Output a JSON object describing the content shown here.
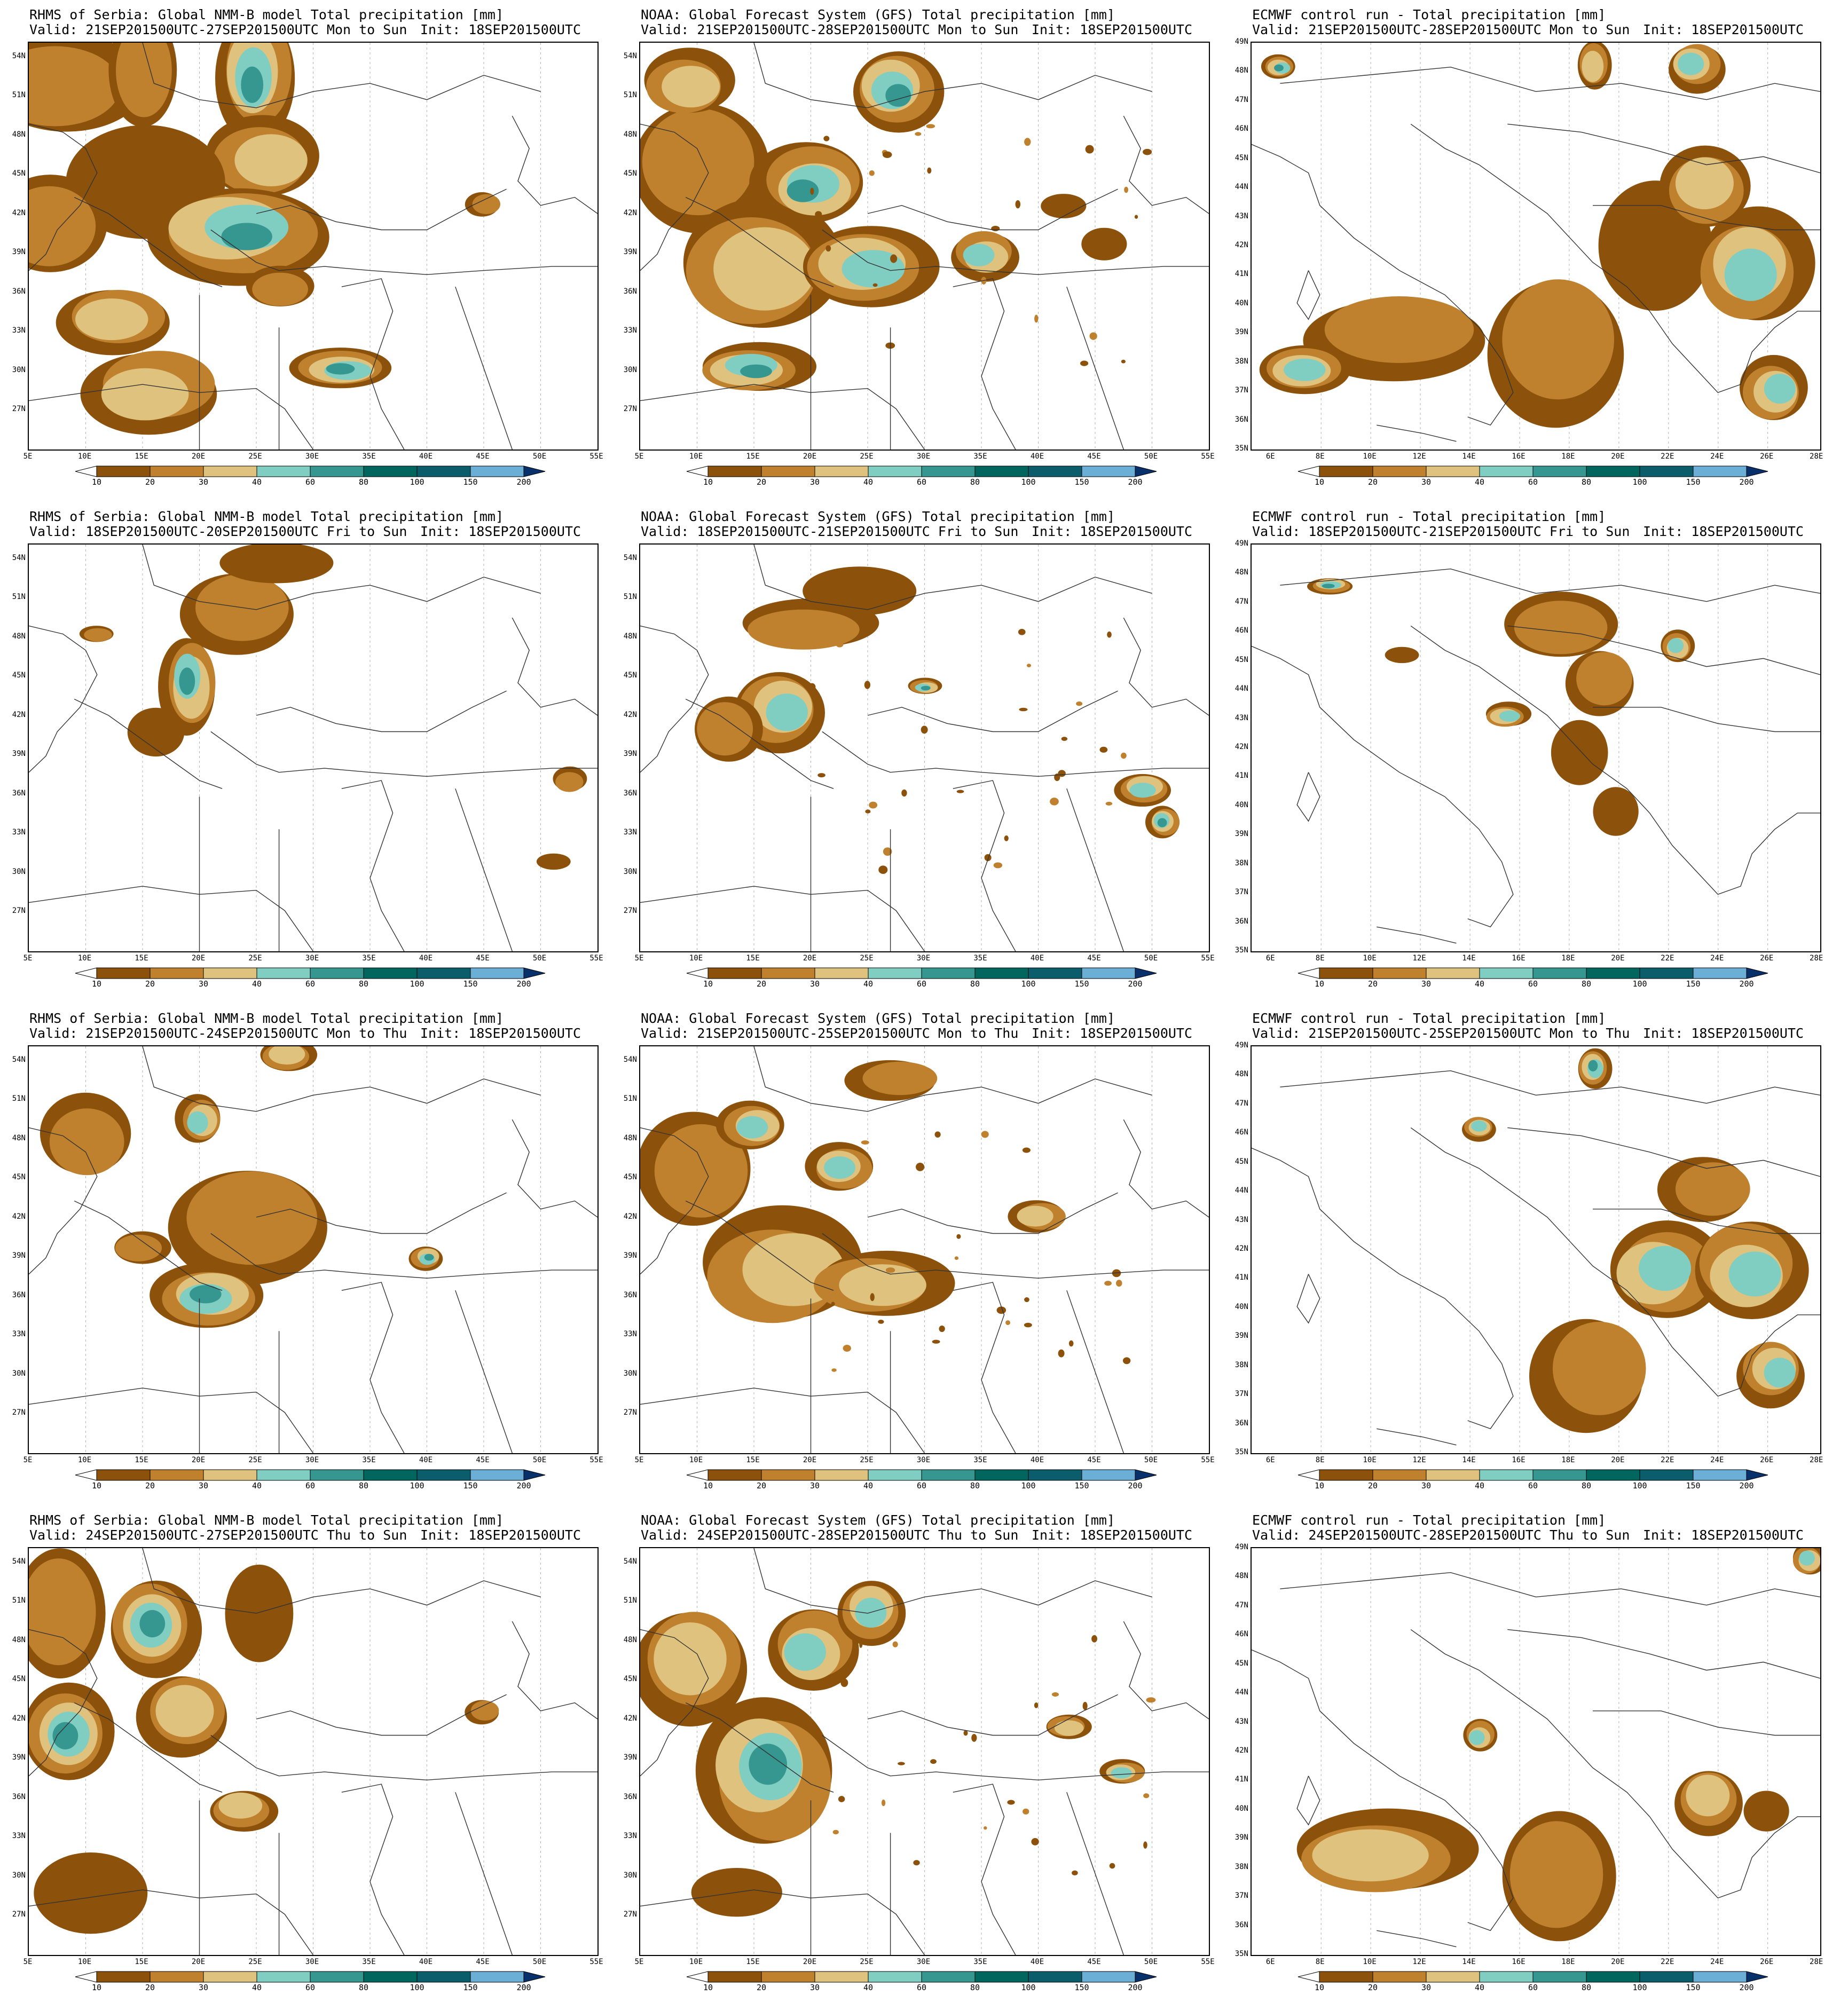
{
  "colorbar": {
    "levels": [
      "10",
      "20",
      "30",
      "40",
      "60",
      "80",
      "100",
      "150",
      "200"
    ],
    "colors": [
      "#8c510a",
      "#bf812d",
      "#dfc27d",
      "#80cdc1",
      "#35978f",
      "#01665e",
      "#0b5d6b",
      "#6baed6",
      "#1f5f9f",
      "#08306b"
    ],
    "extend": "both"
  },
  "colors": {
    "brown": "#8c510a",
    "tan": "#bf812d",
    "sand": "#dfc27d",
    "teal_light": "#80cdc1",
    "teal": "#35978f",
    "teal_dark": "#01665e",
    "blue": "#4a90c8",
    "navy": "#0d3d7a",
    "border_line": "#333333",
    "grid_line": "#b0b0b0"
  },
  "axes": {
    "wide": {
      "x_labels": [
        "5E",
        "10E",
        "15E",
        "20E",
        "25E",
        "30E",
        "35E",
        "40E",
        "45E",
        "50E",
        "55E"
      ],
      "y_labels": [
        "54N",
        "51N",
        "48N",
        "45N",
        "42N",
        "39N",
        "36N",
        "33N",
        "30N",
        "27N"
      ]
    },
    "ecmwf": {
      "x_labels": [
        "6E",
        "8E",
        "10E",
        "12E",
        "14E",
        "16E",
        "18E",
        "20E",
        "22E",
        "24E",
        "26E",
        "28E"
      ],
      "y_labels": [
        "49N",
        "48N",
        "47N",
        "46N",
        "45N",
        "44N",
        "43N",
        "42N",
        "41N",
        "40N",
        "39N",
        "38N",
        "37N",
        "36N",
        "35N"
      ]
    }
  },
  "rows": [
    {
      "panels": [
        {
          "model": "nmmb",
          "title": "RHMS of Serbia: Global NMM-B model Total precipitation [mm]",
          "valid": "Valid: 21SEP201500UTC-27SEP201500UTC Mon to Sun",
          "init": "Init: 18SEP201500UTC"
        },
        {
          "model": "gfs",
          "title": "NOAA: Global Forecast System (GFS) Total precipitation [mm]",
          "valid": "Valid: 21SEP201500UTC-28SEP201500UTC Mon to Sun",
          "init": "Init: 18SEP201500UTC"
        },
        {
          "model": "ecmwf",
          "title": "ECMWF control run - Total precipitation [mm]",
          "valid": "Valid: 21SEP201500UTC-28SEP201500UTC Mon to Sun",
          "init": "Init: 18SEP201500UTC"
        }
      ]
    },
    {
      "panels": [
        {
          "model": "nmmb",
          "title": "RHMS of Serbia: Global NMM-B model Total precipitation [mm]",
          "valid": "Valid: 18SEP201500UTC-20SEP201500UTC Fri to Sun",
          "init": "Init: 18SEP201500UTC"
        },
        {
          "model": "gfs",
          "title": "NOAA: Global Forecast System (GFS) Total precipitation [mm]",
          "valid": "Valid: 18SEP201500UTC-21SEP201500UTC Fri to Sun",
          "init": "Init: 18SEP201500UTC"
        },
        {
          "model": "ecmwf",
          "title": "ECMWF control run - Total precipitation [mm]",
          "valid": "Valid: 18SEP201500UTC-21SEP201500UTC Fri to Sun",
          "init": "Init: 18SEP201500UTC"
        }
      ]
    },
    {
      "panels": [
        {
          "model": "nmmb",
          "title": "RHMS of Serbia: Global NMM-B model Total precipitation [mm]",
          "valid": "Valid: 21SEP201500UTC-24SEP201500UTC Mon to Thu",
          "init": "Init: 18SEP201500UTC"
        },
        {
          "model": "gfs",
          "title": "NOAA: Global Forecast System (GFS) Total precipitation [mm]",
          "valid": "Valid: 21SEP201500UTC-25SEP201500UTC Mon to Thu",
          "init": "Init: 18SEP201500UTC"
        },
        {
          "model": "ecmwf",
          "title": "ECMWF control run - Total precipitation [mm]",
          "valid": "Valid: 21SEP201500UTC-25SEP201500UTC Mon to Thu",
          "init": "Init: 18SEP201500UTC"
        }
      ]
    },
    {
      "panels": [
        {
          "model": "nmmb",
          "title": "RHMS of Serbia: Global NMM-B model Total precipitation [mm]",
          "valid": "Valid: 24SEP201500UTC-27SEP201500UTC Thu to Sun",
          "init": "Init: 18SEP201500UTC"
        },
        {
          "model": "gfs",
          "title": "NOAA: Global Forecast System (GFS) Total precipitation [mm]",
          "valid": "Valid: 24SEP201500UTC-28SEP201500UTC Thu to Sun",
          "init": "Init: 18SEP201500UTC"
        },
        {
          "model": "ecmwf",
          "title": "ECMWF control run - Total precipitation [mm]",
          "valid": "Valid: 24SEP201500UTC-28SEP201500UTC Thu to Sun",
          "init": "Init: 18SEP201500UTC"
        }
      ]
    }
  ]
}
